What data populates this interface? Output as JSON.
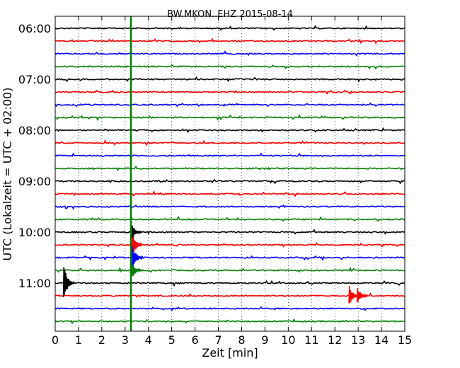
{
  "chart_data": {
    "type": "line",
    "title": "BW.MKON..EHZ 2015-08-14",
    "xlabel": "Zeit  [min]",
    "ylabel": "UTC (Lokalzeit = UTC + 02:00)",
    "xlim": [
      0,
      15
    ],
    "x_ticks": [
      "0",
      "1",
      "2",
      "3",
      "4",
      "5",
      "6",
      "7",
      "8",
      "9",
      "10",
      "11",
      "12",
      "13",
      "14",
      "15"
    ],
    "y_ticks": [
      "06:00",
      "07:00",
      "08:00",
      "09:00",
      "10:00",
      "11:00"
    ],
    "grid": "vertical dotted",
    "trace_minutes": 15,
    "trace_start": "06:00",
    "trace_colors": [
      "#000000",
      "#ff0000",
      "#0000ff",
      "#008000"
    ],
    "trace_count": 24,
    "event_marker": {
      "minute": 3.25,
      "color": "#008000",
      "label": ""
    },
    "events": [
      {
        "trace": 17,
        "minute": 3.25,
        "amplitude": 1.6
      },
      {
        "trace": 18,
        "minute": 3.3,
        "amplitude": 1.1
      },
      {
        "trace": 16,
        "minute": 3.25,
        "amplitude": 0.8
      },
      {
        "trace": 19,
        "minute": 3.3,
        "amplitude": 0.6
      },
      {
        "trace": 21,
        "minute": 12.6,
        "amplitude": 0.9
      },
      {
        "trace": 21,
        "minute": 12.95,
        "amplitude": 0.8
      },
      {
        "trace": 20,
        "minute": 0.35,
        "amplitude": 1.7
      }
    ]
  }
}
